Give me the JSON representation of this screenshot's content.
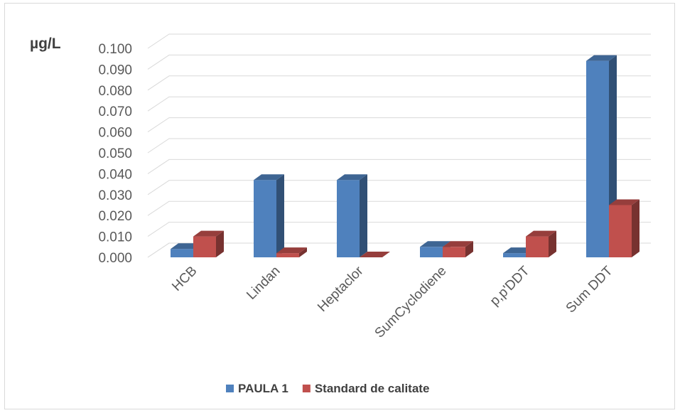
{
  "chart_data": {
    "type": "bar",
    "three_d": true,
    "unit_label": "µg/L",
    "categories": [
      "HCB",
      "Lindan",
      "Heptaclor",
      "SumCyclodiene",
      "p,p'DDT",
      "Sum DDT"
    ],
    "series": [
      {
        "name": "PAULA 1",
        "values": [
          0.004,
          0.037,
          0.037,
          0.005,
          0.002,
          0.094
        ],
        "color": "#4f81bd"
      },
      {
        "name": "Standard de calitate",
        "values": [
          0.01,
          0.002,
          0.0,
          0.005,
          0.01,
          0.025
        ],
        "color": "#c0504d"
      }
    ],
    "y_ticks": [
      "0.000",
      "0.010",
      "0.020",
      "0.030",
      "0.040",
      "0.050",
      "0.060",
      "0.070",
      "0.080",
      "0.090",
      "0.100"
    ],
    "ylim": [
      0,
      0.1
    ],
    "grid": true,
    "legend_position": "bottom"
  }
}
